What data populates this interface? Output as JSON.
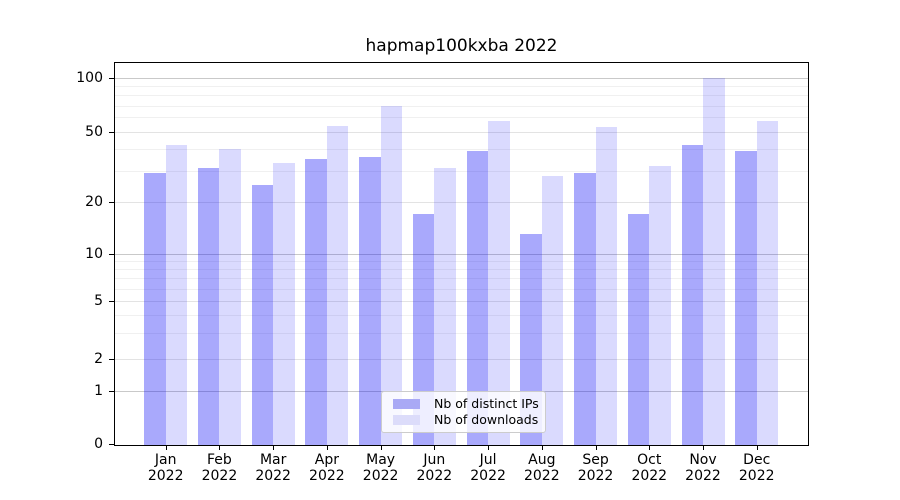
{
  "title": "hapmap100kxba 2022",
  "chart_data": {
    "type": "bar",
    "title": "hapmap100kxba 2022",
    "categories": [
      "Jan 2022",
      "Feb 2022",
      "Mar 2022",
      "Apr 2022",
      "May 2022",
      "Jun 2022",
      "Jul 2022",
      "Aug 2022",
      "Sep 2022",
      "Oct 2022",
      "Nov 2022",
      "Dec 2022"
    ],
    "series": [
      {
        "name": "Nb of distinct IPs",
        "color": "#a9a9fa",
        "fill": "rgba(10,10,245,0.35)",
        "values": [
          29,
          31,
          25,
          35,
          36,
          17,
          39,
          13,
          29,
          17,
          42,
          39
        ]
      },
      {
        "name": "Nb of downloads",
        "color": "#dadafd",
        "fill": "rgba(10,10,245,0.15)",
        "values": [
          42,
          40,
          33,
          54,
          70,
          31,
          57,
          28,
          53,
          32,
          100,
          57
        ]
      }
    ],
    "xlabel": "",
    "ylabel": "",
    "ylim": [
      0,
      100
    ],
    "yscale": "log-like with 0 baseline",
    "yticks": [
      0,
      1,
      2,
      5,
      10,
      20,
      50,
      100
    ],
    "grid": "horizontal major and log-minor gridlines",
    "legend_position": "lower center"
  },
  "axes": {
    "y_tick_labels": [
      "100",
      "50",
      "20",
      "10",
      "5",
      "2",
      "1",
      "0"
    ],
    "x_tick_labels": [
      {
        "month": "Jan",
        "year": "2022"
      },
      {
        "month": "Feb",
        "year": "2022"
      },
      {
        "month": "Mar",
        "year": "2022"
      },
      {
        "month": "Apr",
        "year": "2022"
      },
      {
        "month": "May",
        "year": "2022"
      },
      {
        "month": "Jun",
        "year": "2022"
      },
      {
        "month": "Jul",
        "year": "2022"
      },
      {
        "month": "Aug",
        "year": "2022"
      },
      {
        "month": "Sep",
        "year": "2022"
      },
      {
        "month": "Oct",
        "year": "2022"
      },
      {
        "month": "Nov",
        "year": "2022"
      },
      {
        "month": "Dec",
        "year": "2022"
      }
    ]
  },
  "legend": {
    "items": [
      {
        "label": "Nb of distinct IPs",
        "swatch_color": "#a9a9f5"
      },
      {
        "label": "Nb of downloads",
        "swatch_color": "#dcdcfa"
      }
    ]
  },
  "colors": {
    "major_gridline": "#c9c9c9",
    "mid_gridline": "#e3e3e3",
    "minor_gridline": "#f0f0f0",
    "spine": "#000000",
    "background": "#ffffff"
  }
}
